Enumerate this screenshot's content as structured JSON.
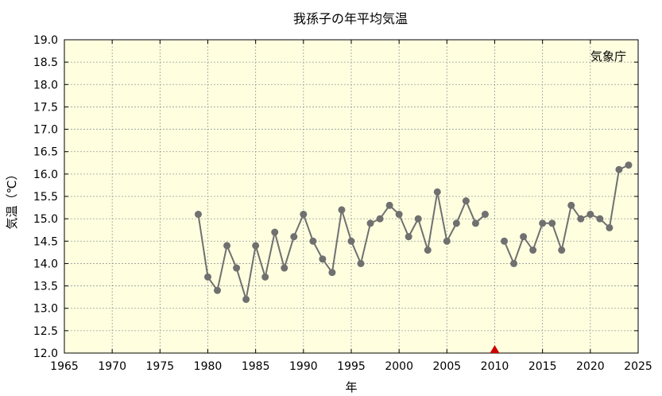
{
  "chart_data": {
    "type": "line",
    "title": "我孫子の年平均気温",
    "xlabel": "年",
    "ylabel": "気温（℃）",
    "source_label": "気象庁",
    "xlim": [
      1965,
      2025
    ],
    "ylim": [
      12.0,
      19.0
    ],
    "x_ticks": [
      1965,
      1970,
      1975,
      1980,
      1985,
      1990,
      1995,
      2000,
      2005,
      2010,
      2015,
      2020,
      2025
    ],
    "y_ticks": [
      "12.0",
      "12.5",
      "13.0",
      "13.5",
      "14.0",
      "14.5",
      "15.0",
      "15.5",
      "16.0",
      "16.5",
      "17.0",
      "17.5",
      "18.0",
      "18.5",
      "19.0"
    ],
    "grid": true,
    "colors": {
      "plot_bg": "#ffffe0",
      "line": "#707070",
      "marker": "#707070",
      "grid": "#999999",
      "marker_triangle": "#cc0000"
    },
    "series": [
      {
        "segments": [
          {
            "x": [
              1979,
              1980,
              1981,
              1982,
              1983,
              1984,
              1985,
              1986,
              1987,
              1988,
              1989,
              1990,
              1991,
              1992,
              1993,
              1994,
              1995,
              1996,
              1997,
              1998,
              1999,
              2000,
              2001,
              2002,
              2003,
              2004,
              2005,
              2006,
              2007,
              2008,
              2009
            ],
            "y": [
              15.1,
              13.7,
              13.4,
              14.4,
              13.9,
              13.2,
              14.4,
              13.7,
              14.7,
              13.9,
              14.6,
              15.1,
              14.5,
              14.1,
              13.8,
              15.2,
              14.5,
              14.0,
              14.9,
              15.0,
              15.3,
              15.1,
              14.6,
              15.0,
              14.3,
              15.6,
              14.5,
              14.9,
              15.4,
              14.9,
              15.1
            ]
          },
          {
            "x": [
              2011,
              2012,
              2013,
              2014,
              2015,
              2016,
              2017,
              2018,
              2019,
              2020,
              2021,
              2022,
              2023,
              2024
            ],
            "y": [
              14.5,
              14.0,
              14.6,
              14.3,
              14.9,
              14.9,
              14.3,
              15.3,
              15.0,
              15.1,
              15.0,
              14.8,
              16.1,
              16.2
            ]
          }
        ]
      }
    ],
    "markers": [
      {
        "x": 2010,
        "y": 12.0,
        "shape": "triangle"
      }
    ]
  }
}
